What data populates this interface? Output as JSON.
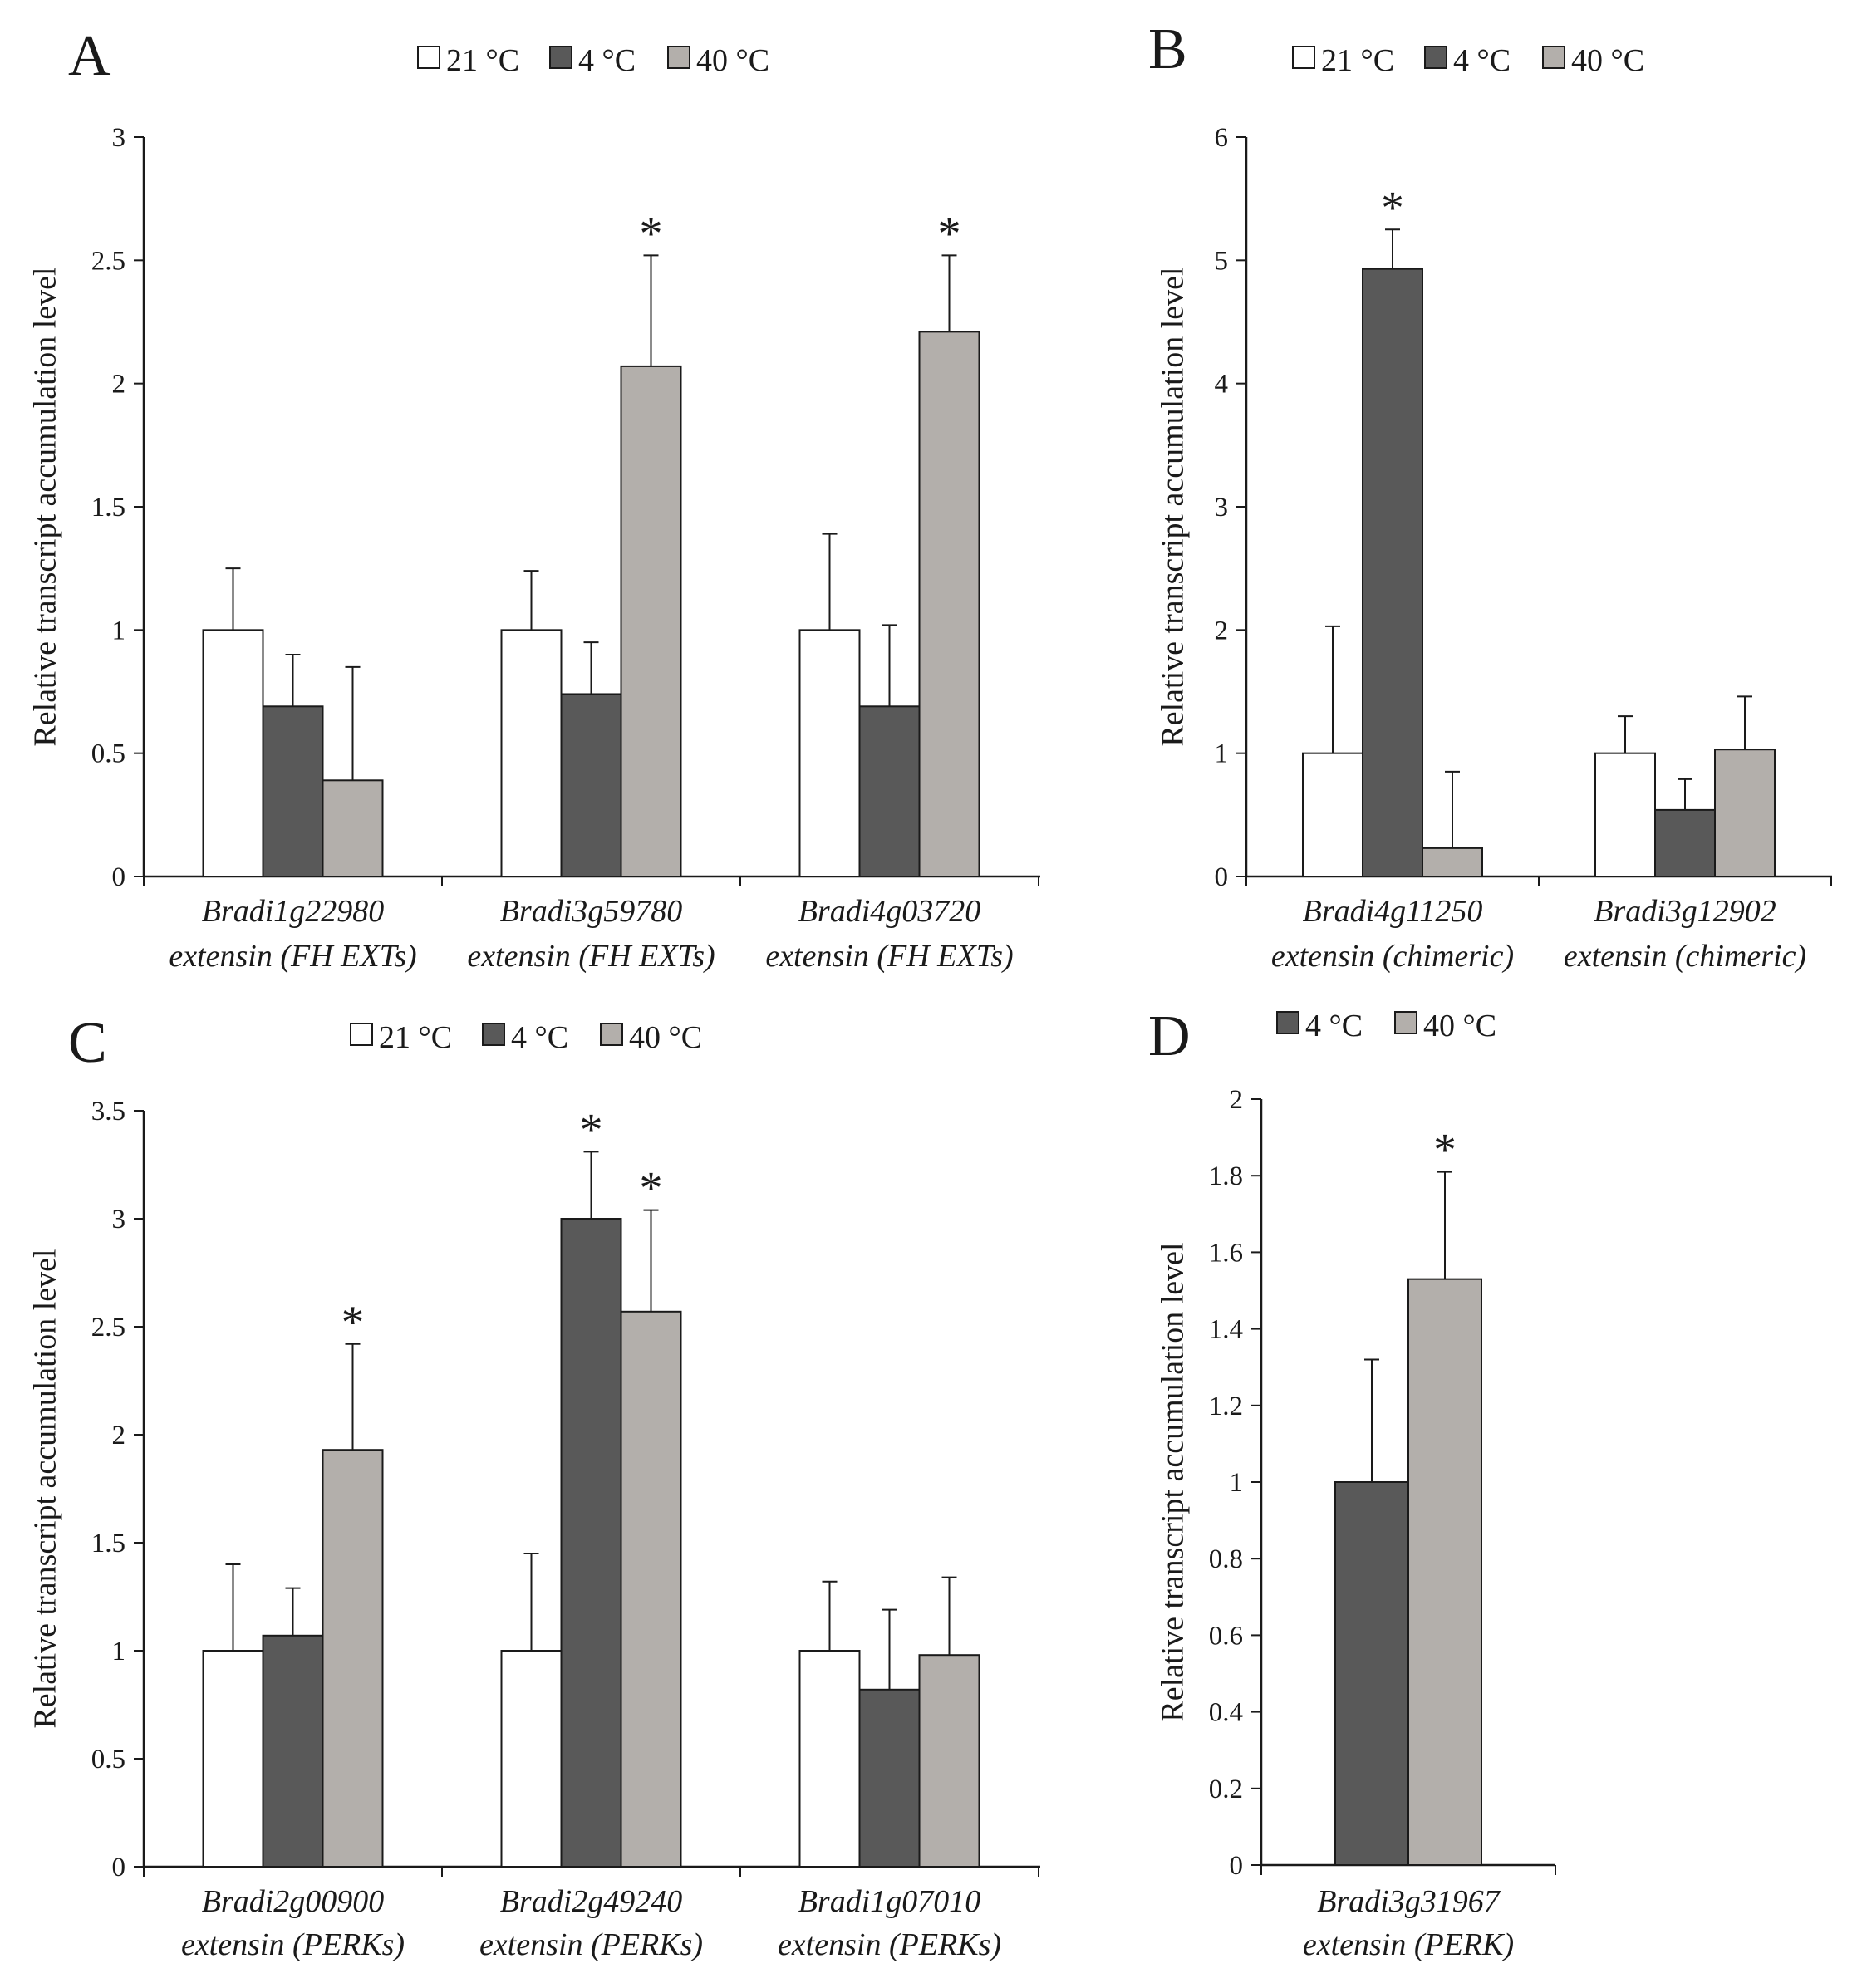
{
  "colors": {
    "c21": "#ffffff",
    "c4": "#595959",
    "c40": "#b3afab",
    "edge": "#1a1a1a"
  },
  "chart_data": [
    {
      "panel": "A",
      "type": "bar",
      "legend": [
        "21 °C",
        "4 °C",
        "40 °C"
      ],
      "ylabel": "Relative transcript accumulation level",
      "ylim": [
        0,
        3
      ],
      "yticks": [
        0,
        0.5,
        1,
        1.5,
        2,
        2.5,
        3
      ],
      "ytick_labels": [
        "0",
        "0.5",
        "1",
        "1.5",
        "2",
        "2.5",
        "3"
      ],
      "categories": [
        [
          "Bradi1g22980",
          "extensin (FH EXTs)"
        ],
        [
          "Bradi3g59780",
          "extensin (FH EXTs)"
        ],
        [
          "Bradi4g03720",
          "extensin (FH EXTs)"
        ]
      ],
      "series": [
        {
          "name": "21 °C",
          "color": "c21",
          "values": [
            1,
            1,
            1
          ],
          "errors": [
            0.25,
            0.24,
            0.39
          ],
          "sig": [
            false,
            false,
            false
          ]
        },
        {
          "name": "4 °C",
          "color": "c4",
          "values": [
            0.69,
            0.74,
            0.69
          ],
          "errors": [
            0.21,
            0.21,
            0.33
          ],
          "sig": [
            false,
            false,
            false
          ]
        },
        {
          "name": "40 °C",
          "color": "c40",
          "values": [
            0.39,
            2.07,
            2.21
          ],
          "errors": [
            0.46,
            0.45,
            0.31
          ],
          "sig": [
            false,
            true,
            true
          ]
        }
      ]
    },
    {
      "panel": "B",
      "type": "bar",
      "legend": [
        "21 °C",
        "4 °C",
        "40 °C"
      ],
      "ylabel": "Relative transcript accumulation level",
      "ylim": [
        0,
        6
      ],
      "yticks": [
        0,
        1,
        2,
        3,
        4,
        5,
        6
      ],
      "ytick_labels": [
        "0",
        "1",
        "2",
        "3",
        "4",
        "5",
        "6"
      ],
      "categories": [
        [
          "Bradi4g11250",
          "extensin (chimeric)"
        ],
        [
          "Bradi3g12902",
          "extensin (chimeric)"
        ]
      ],
      "series": [
        {
          "name": "21 °C",
          "color": "c21",
          "values": [
            1,
            1
          ],
          "errors": [
            1.03,
            0.3
          ],
          "sig": [
            false,
            false
          ]
        },
        {
          "name": "4 °C",
          "color": "c4",
          "values": [
            4.93,
            0.54
          ],
          "errors": [
            0.32,
            0.25
          ],
          "sig": [
            true,
            false
          ]
        },
        {
          "name": "40 °C",
          "color": "c40",
          "values": [
            0.23,
            1.03
          ],
          "errors": [
            0.62,
            0.43
          ],
          "sig": [
            false,
            false
          ]
        }
      ]
    },
    {
      "panel": "C",
      "type": "bar",
      "legend": [
        "21 °C",
        "4 °C",
        "40 °C"
      ],
      "ylabel": "Relative transcript accumulation level",
      "ylim": [
        0,
        3.5
      ],
      "yticks": [
        0,
        0.5,
        1,
        1.5,
        2,
        2.5,
        3,
        3.5
      ],
      "ytick_labels": [
        "0",
        "0.5",
        "1",
        "1.5",
        "2",
        "2.5",
        "3",
        "3.5"
      ],
      "categories": [
        [
          "Bradi2g00900",
          "extensin (PERKs)"
        ],
        [
          "Bradi2g49240",
          "extensin (PERKs)"
        ],
        [
          "Bradi1g07010",
          "extensin (PERKs)"
        ]
      ],
      "series": [
        {
          "name": "21 °C",
          "color": "c21",
          "values": [
            1,
            1,
            1
          ],
          "errors": [
            0.4,
            0.45,
            0.32
          ],
          "sig": [
            false,
            false,
            false
          ]
        },
        {
          "name": "4 °C",
          "color": "c4",
          "values": [
            1.07,
            3,
            0.82
          ],
          "errors": [
            0.22,
            0.31,
            0.37
          ],
          "sig": [
            false,
            true,
            false
          ]
        },
        {
          "name": "40 °C",
          "color": "c40",
          "values": [
            1.93,
            2.57,
            0.98
          ],
          "errors": [
            0.49,
            0.47,
            0.36
          ],
          "sig": [
            true,
            true,
            false
          ]
        }
      ]
    },
    {
      "panel": "D",
      "type": "bar",
      "legend": [
        "4 °C",
        "40 °C"
      ],
      "ylabel": "Relative transcript accumulation level",
      "ylim": [
        0,
        2
      ],
      "yticks": [
        0,
        0.2,
        0.4,
        0.6,
        0.8,
        1,
        1.2,
        1.4,
        1.6,
        1.8,
        2
      ],
      "ytick_labels": [
        "0",
        "0.2",
        "0.4",
        "0.6",
        "0.8",
        "1",
        "1.2",
        "1.4",
        "1.6",
        "1.8",
        "2"
      ],
      "categories": [
        [
          "Bradi3g31967",
          "extensin (PERK)"
        ]
      ],
      "series": [
        {
          "name": "4 °C",
          "color": "c4",
          "values": [
            1
          ],
          "errors": [
            0.32
          ],
          "sig": [
            false
          ]
        },
        {
          "name": "40 °C",
          "color": "c40",
          "values": [
            1.53
          ],
          "errors": [
            0.28
          ],
          "sig": [
            true
          ]
        }
      ]
    }
  ]
}
